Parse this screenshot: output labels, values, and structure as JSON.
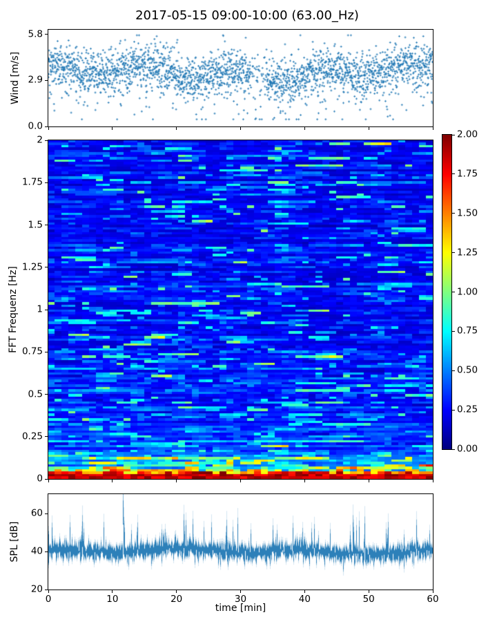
{
  "figure": {
    "title": "2017-05-15 09:00-10:00 (63.00_Hz)",
    "background": "#ffffff",
    "accent_color": "#1f77b4"
  },
  "chart_data": [
    {
      "type": "scatter",
      "name": "wind-speed",
      "ylabel": "Wind [m/s]",
      "ytick_labels": [
        "0.0",
        "2.9",
        "5.8"
      ],
      "ytick_values": [
        0,
        2.9,
        5.8
      ],
      "ylim": [
        0,
        6.1
      ],
      "xlim": [
        0,
        60
      ],
      "xtick_values": [
        0,
        10,
        20,
        30,
        40,
        50,
        60
      ],
      "marker": "plus",
      "color": "#1f77b4",
      "n_points": 2600,
      "mean": 3.35,
      "std": 0.68,
      "low_outlier_fraction": 0.05,
      "high_outlier_fraction": 0.025,
      "sparse_gap_minutes": [
        31.5,
        34
      ],
      "min_value": 0.45,
      "max_value": 5.75,
      "seed": 42
    },
    {
      "type": "heatmap",
      "name": "fft-spectrogram",
      "ylabel": "FFT Frequenz [Hz]",
      "ytick_labels": [
        "0",
        "0.25",
        "0.5",
        "0.75",
        "1",
        "1.25",
        "1.5",
        "1.75",
        "2"
      ],
      "ytick_values": [
        0,
        0.25,
        0.5,
        0.75,
        1,
        1.25,
        1.5,
        1.75,
        2
      ],
      "ylim": [
        0,
        2
      ],
      "xlim": [
        0,
        60
      ],
      "xtick_values": [
        0,
        10,
        20,
        30,
        40,
        50,
        60
      ],
      "colormap": "jet",
      "vmin": 0,
      "vmax": 2,
      "cols": 56,
      "rows": 140,
      "profile": "energy rises sharply below 0.3 Hz; bottom rows saturated near 2.0 (dark red); mid/high frequencies mostly 0.1-0.4 (blue) with sporadic cyan-green streaks",
      "seed": 7
    },
    {
      "type": "line",
      "name": "spl",
      "ylabel": "SPL [dB]",
      "xlabel": "time [min]",
      "ytick_labels": [
        "20",
        "40",
        "60"
      ],
      "ytick_values": [
        20,
        40,
        60
      ],
      "ylim": [
        20,
        70.2
      ],
      "xlim": [
        0,
        60
      ],
      "xtick_labels": [
        "0",
        "10",
        "20",
        "30",
        "40",
        "50",
        "60"
      ],
      "xtick_values": [
        0,
        10,
        20,
        30,
        40,
        50,
        60
      ],
      "color": "#1f77b4",
      "n_points": 3600,
      "mean": 40,
      "std": 2.1,
      "peaks": [
        {
          "t": 5.3,
          "v": 57
        },
        {
          "t": 11.7,
          "v": 67
        },
        {
          "t": 13.9,
          "v": 53
        },
        {
          "t": 21.2,
          "v": 58
        },
        {
          "t": 22.6,
          "v": 56
        },
        {
          "t": 27.8,
          "v": 54
        },
        {
          "t": 35.1,
          "v": 53
        },
        {
          "t": 38.2,
          "v": 54
        },
        {
          "t": 41.5,
          "v": 53
        },
        {
          "t": 47.6,
          "v": 56
        },
        {
          "t": 49.4,
          "v": 55
        },
        {
          "t": 53.0,
          "v": 53
        },
        {
          "t": 57.5,
          "v": 54
        }
      ],
      "seed": 99
    }
  ],
  "colorbar": {
    "colormap": "jet",
    "vmin": 0,
    "vmax": 2,
    "tick_labels": [
      "0.00",
      "0.25",
      "0.50",
      "0.75",
      "1.00",
      "1.25",
      "1.50",
      "1.75",
      "2.00"
    ],
    "tick_values": [
      0,
      0.25,
      0.5,
      0.75,
      1,
      1.25,
      1.5,
      1.75,
      2
    ]
  }
}
